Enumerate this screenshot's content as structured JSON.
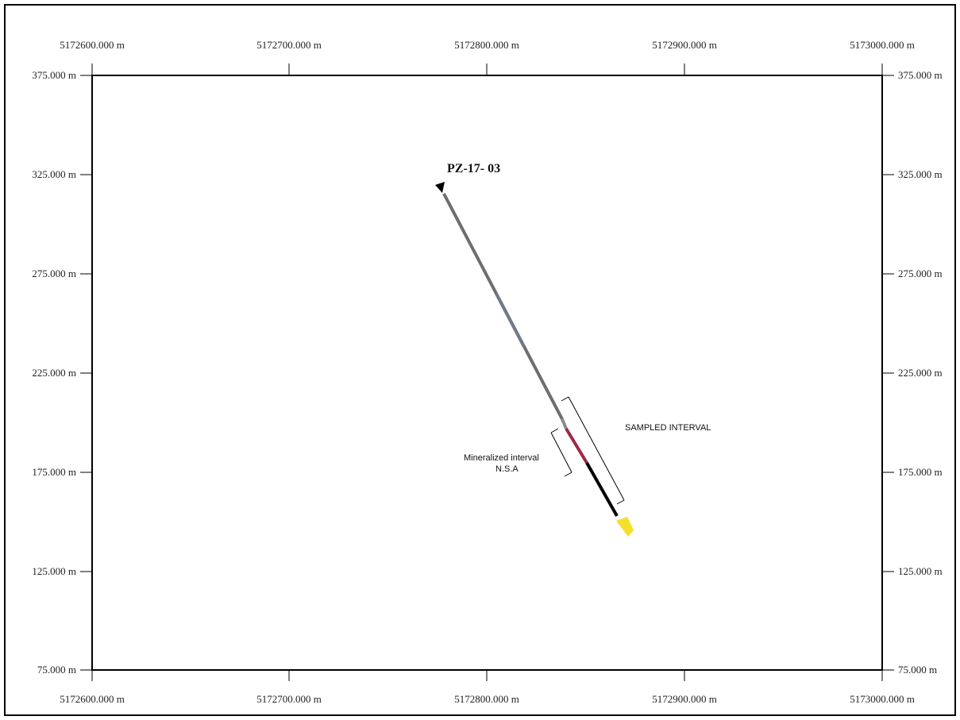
{
  "section": {
    "hole_id": "PZ-17- 03",
    "annotations": {
      "sampled_interval": "SAMPLED INTERVAL",
      "mineralized_interval": "Mineralized interval",
      "nsa": "N.S.A"
    },
    "axes": {
      "x_labels": [
        "5172600.000 m",
        "5172700.000 m",
        "5172800.000 m",
        "5172900.000 m",
        "5173000.000 m"
      ],
      "y_labels": [
        "375.000 m",
        "325.000 m",
        "275.000 m",
        "225.000 m",
        "175.000 m",
        "125.000 m",
        "75.000 m"
      ]
    }
  }
}
